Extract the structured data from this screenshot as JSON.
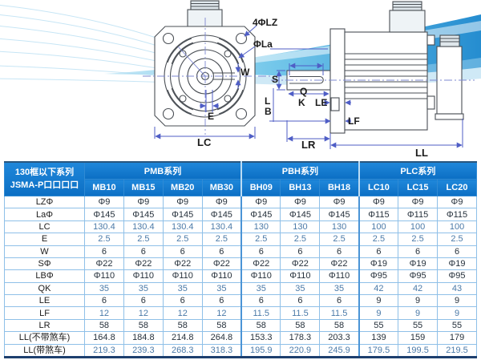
{
  "colors": {
    "header_blue": "#0f79d3",
    "grid_blue": "#8fc0e8",
    "group_border_blue": "#4a94d6",
    "table_bottom_border": "#1d3f6e",
    "dimension_blue": "#4f5ec6",
    "drawing_line_gray": "#4a4f55",
    "wave_deep_blue": "#1283cc",
    "wave_light_blue": "#bfe6f5"
  },
  "diagram": {
    "labels": {
      "lz": "4ΦLZ",
      "la": "ΦLa",
      "w": "W",
      "e": "E",
      "lc": "LC",
      "s": "S",
      "q": "Q",
      "k": "K",
      "l": "L",
      "b": "B",
      "le": "LE",
      "lf": "LF",
      "lr": "LR",
      "ll": "LL"
    }
  },
  "table": {
    "corner_header": [
      "130框以下系列",
      "JSMA-P口口口口"
    ],
    "series": [
      {
        "name": "PMB系列",
        "models": [
          "MB10",
          "MB15",
          "MB20",
          "MB30"
        ]
      },
      {
        "name": "PBH系列",
        "models": [
          "BH09",
          "BH13",
          "BH18"
        ]
      },
      {
        "name": "PLC系列",
        "models": [
          "LC10",
          "LC15",
          "LC20"
        ]
      }
    ],
    "rows": [
      {
        "label": "LZΦ",
        "values": [
          "Φ9",
          "Φ9",
          "Φ9",
          "Φ9",
          "Φ9",
          "Φ9",
          "Φ9",
          "Φ9",
          "Φ9",
          "Φ9"
        ]
      },
      {
        "label": "LaΦ",
        "values": [
          "Φ145",
          "Φ145",
          "Φ145",
          "Φ145",
          "Φ145",
          "Φ145",
          "Φ145",
          "Φ115",
          "Φ115",
          "Φ115"
        ]
      },
      {
        "label": "LC",
        "values": [
          "130.4",
          "130.4",
          "130.4",
          "130.4",
          "130",
          "130",
          "130",
          "100",
          "100",
          "100"
        ]
      },
      {
        "label": "E",
        "values": [
          "2.5",
          "2.5",
          "2.5",
          "2.5",
          "2.5",
          "2.5",
          "2.5",
          "2.5",
          "2.5",
          "2.5"
        ]
      },
      {
        "label": "W",
        "values": [
          "6",
          "6",
          "6",
          "6",
          "6",
          "6",
          "6",
          "6",
          "6",
          "6"
        ]
      },
      {
        "label": "SΦ",
        "values": [
          "Φ22",
          "Φ22",
          "Φ22",
          "Φ22",
          "Φ22",
          "Φ22",
          "Φ22",
          "Φ19",
          "Φ19",
          "Φ19"
        ]
      },
      {
        "label": "LBΦ",
        "values": [
          "Φ110",
          "Φ110",
          "Φ110",
          "Φ110",
          "Φ110",
          "Φ110",
          "Φ110",
          "Φ95",
          "Φ95",
          "Φ95"
        ]
      },
      {
        "label": "QK",
        "values": [
          "35",
          "35",
          "35",
          "35",
          "35",
          "35",
          "35",
          "42",
          "42",
          "43"
        ]
      },
      {
        "label": "LE",
        "values": [
          "6",
          "6",
          "6",
          "6",
          "6",
          "6",
          "6",
          "9",
          "9",
          "9"
        ]
      },
      {
        "label": "LF",
        "values": [
          "12",
          "12",
          "12",
          "12",
          "11.5",
          "11.5",
          "11.5",
          "9",
          "9",
          "9"
        ]
      },
      {
        "label": "LR",
        "values": [
          "58",
          "58",
          "58",
          "58",
          "58",
          "58",
          "58",
          "55",
          "55",
          "55"
        ]
      },
      {
        "label": "LL(不带煞车)",
        "values": [
          "164.8",
          "184.8",
          "214.8",
          "264.8",
          "153.3",
          "178.3",
          "203.3",
          "139",
          "159",
          "179"
        ]
      },
      {
        "label": "LL(带煞车)",
        "values": [
          "219.3",
          "239.3",
          "268.3",
          "318.3",
          "195.9",
          "220.9",
          "245.9",
          "179.5",
          "199.5",
          "219.5"
        ]
      }
    ]
  }
}
